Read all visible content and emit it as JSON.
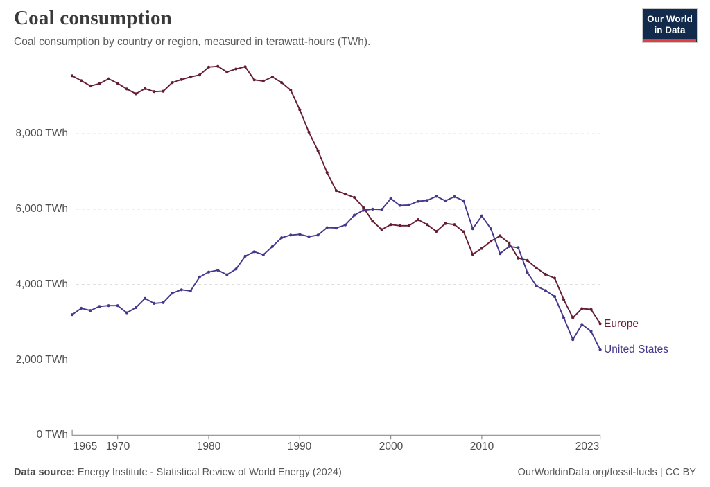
{
  "header": {
    "title": "Coal consumption",
    "subtitle": "Coal consumption by country or region, measured in terawatt-hours (TWh)."
  },
  "logo": {
    "line1": "Our World",
    "line2": "in Data",
    "bg_color": "#122B4D",
    "accent_color": "#E23D41"
  },
  "chart_data": {
    "type": "line",
    "title": "Coal consumption",
    "unit": "TWh",
    "x": [
      1965,
      1966,
      1967,
      1968,
      1969,
      1970,
      1971,
      1972,
      1973,
      1974,
      1975,
      1976,
      1977,
      1978,
      1979,
      1980,
      1981,
      1982,
      1983,
      1984,
      1985,
      1986,
      1987,
      1988,
      1989,
      1990,
      1991,
      1992,
      1993,
      1994,
      1995,
      1996,
      1997,
      1998,
      1999,
      2000,
      2001,
      2002,
      2003,
      2004,
      2005,
      2006,
      2007,
      2008,
      2009,
      2010,
      2011,
      2012,
      2013,
      2014,
      2015,
      2016,
      2017,
      2018,
      2019,
      2020,
      2021,
      2022,
      2023
    ],
    "series": [
      {
        "name": "Europe",
        "color": "#651D32",
        "values": [
          9540,
          9410,
          9270,
          9330,
          9460,
          9340,
          9190,
          9060,
          9200,
          9120,
          9130,
          9360,
          9440,
          9510,
          9560,
          9770,
          9790,
          9640,
          9720,
          9780,
          9430,
          9400,
          9510,
          9360,
          9160,
          8640,
          8040,
          7550,
          6970,
          6490,
          6400,
          6310,
          6040,
          5680,
          5460,
          5590,
          5560,
          5560,
          5720,
          5590,
          5410,
          5620,
          5590,
          5400,
          4800,
          4960,
          5150,
          5290,
          5100,
          4700,
          4640,
          4440,
          4270,
          4170,
          3600,
          3120,
          3360,
          3340,
          2960
        ]
      },
      {
        "name": "United States",
        "color": "#46378C",
        "values": [
          3200,
          3370,
          3310,
          3420,
          3440,
          3440,
          3250,
          3390,
          3630,
          3500,
          3520,
          3770,
          3860,
          3830,
          4200,
          4330,
          4380,
          4260,
          4410,
          4750,
          4870,
          4790,
          5010,
          5240,
          5310,
          5330,
          5270,
          5310,
          5510,
          5500,
          5580,
          5840,
          5970,
          6000,
          5990,
          6280,
          6100,
          6110,
          6210,
          6230,
          6340,
          6220,
          6330,
          6220,
          5480,
          5820,
          5480,
          4820,
          5010,
          4980,
          4320,
          3960,
          3840,
          3680,
          3120,
          2540,
          2940,
          2760,
          2270
        ]
      }
    ],
    "yticks": [
      0,
      2000,
      4000,
      6000,
      8000
    ],
    "ytick_labels": [
      "0 TWh",
      "2,000 TWh",
      "4,000 TWh",
      "6,000 TWh",
      "8,000 TWh"
    ],
    "xticks": [
      1965,
      1970,
      1980,
      1990,
      2000,
      2010,
      2023
    ],
    "xtick_labels": [
      "1965",
      "1970",
      "1980",
      "1990",
      "2000",
      "2010",
      "2023"
    ],
    "ylim": [
      0,
      9800
    ],
    "xlim": [
      1965,
      2023
    ],
    "grid": "horizontal-dashed",
    "legend": "line-end-labels"
  },
  "footer": {
    "source_label": "Data source:",
    "source_text": "Energy Institute - Statistical Review of World Energy (2024)",
    "link_text": "OurWorldinData.org/fossil-fuels",
    "license_text": "| CC BY"
  }
}
